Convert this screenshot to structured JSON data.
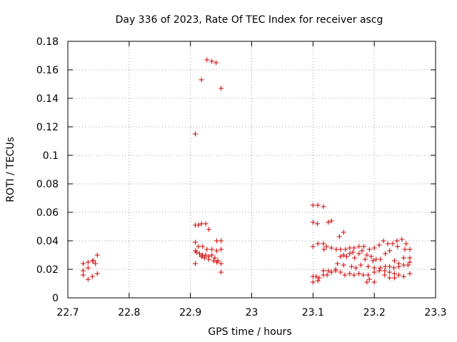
{
  "chart_data": {
    "type": "scatter",
    "title": "Day 336 of 2023, Rate Of TEC Index for receiver ascg",
    "xlabel": "GPS time / hours",
    "ylabel": "ROTI / TECUs",
    "xlim": [
      22.7,
      23.3
    ],
    "ylim": [
      0,
      0.18
    ],
    "xticks": [
      "22.7",
      "22.8",
      "22.9",
      "23",
      "23.1",
      "23.2",
      "23.3"
    ],
    "yticks": [
      "0",
      "0.02",
      "0.04",
      "0.06",
      "0.08",
      "0.1",
      "0.12",
      "0.14",
      "0.16",
      "0.18"
    ],
    "grid": true,
    "legend": "none",
    "marker": "+",
    "marker_color": "#cc0000",
    "series": [
      {
        "points": [
          [
            22.725,
            0.024
          ],
          [
            22.725,
            0.019
          ],
          [
            22.725,
            0.016
          ],
          [
            22.733,
            0.013
          ],
          [
            22.733,
            0.021
          ],
          [
            22.733,
            0.025
          ],
          [
            22.74,
            0.015
          ],
          [
            22.74,
            0.026
          ],
          [
            22.742,
            0.026
          ],
          [
            22.745,
            0.024
          ],
          [
            22.748,
            0.017
          ],
          [
            22.748,
            0.03
          ],
          [
            22.908,
            0.115
          ],
          [
            22.918,
            0.153
          ],
          [
            22.927,
            0.167
          ],
          [
            22.935,
            0.166
          ],
          [
            22.942,
            0.165
          ],
          [
            22.95,
            0.147
          ],
          [
            22.908,
            0.051
          ],
          [
            22.913,
            0.051
          ],
          [
            22.918,
            0.052
          ],
          [
            22.925,
            0.052
          ],
          [
            22.93,
            0.048
          ],
          [
            22.943,
            0.04
          ],
          [
            22.95,
            0.04
          ],
          [
            22.908,
            0.039
          ],
          [
            22.913,
            0.036
          ],
          [
            22.92,
            0.036
          ],
          [
            22.927,
            0.034
          ],
          [
            22.935,
            0.034
          ],
          [
            22.943,
            0.033
          ],
          [
            22.95,
            0.034
          ],
          [
            22.908,
            0.033
          ],
          [
            22.91,
            0.032
          ],
          [
            22.915,
            0.031
          ],
          [
            22.92,
            0.03
          ],
          [
            22.925,
            0.03
          ],
          [
            22.93,
            0.029
          ],
          [
            22.935,
            0.03
          ],
          [
            22.94,
            0.028
          ],
          [
            22.945,
            0.026
          ],
          [
            22.918,
            0.029
          ],
          [
            22.923,
            0.028
          ],
          [
            22.93,
            0.027
          ],
          [
            22.938,
            0.026
          ],
          [
            22.943,
            0.025
          ],
          [
            22.95,
            0.024
          ],
          [
            22.908,
            0.024
          ],
          [
            22.95,
            0.018
          ],
          [
            23.1,
            0.065
          ],
          [
            23.108,
            0.065
          ],
          [
            23.117,
            0.064
          ],
          [
            23.1,
            0.053
          ],
          [
            23.107,
            0.052
          ],
          [
            23.125,
            0.053
          ],
          [
            23.13,
            0.054
          ],
          [
            23.15,
            0.046
          ],
          [
            23.143,
            0.043
          ],
          [
            23.1,
            0.036
          ],
          [
            23.108,
            0.038
          ],
          [
            23.117,
            0.038
          ],
          [
            23.122,
            0.036
          ],
          [
            23.13,
            0.035
          ],
          [
            23.138,
            0.034
          ],
          [
            23.145,
            0.034
          ],
          [
            23.153,
            0.034
          ],
          [
            23.16,
            0.035
          ],
          [
            23.167,
            0.035
          ],
          [
            23.175,
            0.036
          ],
          [
            23.183,
            0.036
          ],
          [
            23.192,
            0.034
          ],
          [
            23.2,
            0.035
          ],
          [
            23.208,
            0.037
          ],
          [
            23.215,
            0.04
          ],
          [
            23.222,
            0.038
          ],
          [
            23.23,
            0.038
          ],
          [
            23.237,
            0.04
          ],
          [
            23.245,
            0.041
          ],
          [
            23.252,
            0.038
          ],
          [
            23.258,
            0.034
          ],
          [
            23.118,
            0.034
          ],
          [
            23.25,
            0.034
          ],
          [
            23.165,
            0.032
          ],
          [
            23.175,
            0.031
          ],
          [
            23.18,
            0.033
          ],
          [
            23.188,
            0.03
          ],
          [
            23.195,
            0.029
          ],
          [
            23.203,
            0.027
          ],
          [
            23.21,
            0.027
          ],
          [
            23.218,
            0.031
          ],
          [
            23.225,
            0.033
          ],
          [
            23.238,
            0.036
          ],
          [
            23.145,
            0.029
          ],
          [
            23.15,
            0.03
          ],
          [
            23.155,
            0.029
          ],
          [
            23.16,
            0.031
          ],
          [
            23.168,
            0.028
          ],
          [
            23.185,
            0.027
          ],
          [
            23.198,
            0.026
          ],
          [
            23.233,
            0.026
          ],
          [
            23.24,
            0.024
          ],
          [
            23.248,
            0.028
          ],
          [
            23.258,
            0.028
          ],
          [
            23.258,
            0.025
          ],
          [
            23.14,
            0.024
          ],
          [
            23.15,
            0.023
          ],
          [
            23.163,
            0.022
          ],
          [
            23.17,
            0.021
          ],
          [
            23.178,
            0.023
          ],
          [
            23.19,
            0.022
          ],
          [
            23.2,
            0.021
          ],
          [
            23.21,
            0.021
          ],
          [
            23.218,
            0.022
          ],
          [
            23.225,
            0.022
          ],
          [
            23.232,
            0.021
          ],
          [
            23.24,
            0.022
          ],
          [
            23.248,
            0.023
          ],
          [
            23.255,
            0.023
          ],
          [
            23.117,
            0.019
          ],
          [
            23.125,
            0.019
          ],
          [
            23.13,
            0.018
          ],
          [
            23.137,
            0.019
          ],
          [
            23.145,
            0.018
          ],
          [
            23.152,
            0.016
          ],
          [
            23.16,
            0.017
          ],
          [
            23.167,
            0.016
          ],
          [
            23.175,
            0.017
          ],
          [
            23.182,
            0.016
          ],
          [
            23.19,
            0.016
          ],
          [
            23.2,
            0.018
          ],
          [
            23.208,
            0.019
          ],
          [
            23.217,
            0.019
          ],
          [
            23.225,
            0.018
          ],
          [
            23.233,
            0.017
          ],
          [
            23.24,
            0.016
          ],
          [
            23.248,
            0.015
          ],
          [
            23.258,
            0.017
          ],
          [
            23.1,
            0.015
          ],
          [
            23.105,
            0.015
          ],
          [
            23.11,
            0.014
          ],
          [
            23.117,
            0.016
          ],
          [
            23.123,
            0.016
          ],
          [
            23.13,
            0.018
          ],
          [
            23.137,
            0.02
          ],
          [
            23.192,
            0.013
          ],
          [
            23.2,
            0.011
          ],
          [
            23.217,
            0.016
          ],
          [
            23.225,
            0.014
          ],
          [
            23.233,
            0.014
          ],
          [
            23.1,
            0.011
          ],
          [
            23.108,
            0.012
          ],
          [
            23.188,
            0.011
          ]
        ]
      }
    ]
  }
}
